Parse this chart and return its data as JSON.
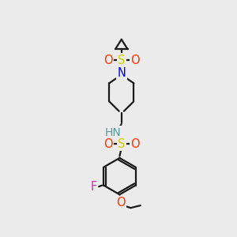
{
  "bg_color": "#ebebeb",
  "line_color": "#1a1a1a",
  "line_width": 1.6,
  "atom_colors": {
    "S": "#cccc00",
    "O": "#ff3300",
    "N_blue": "#0000ee",
    "N_teal": "#559999",
    "F": "#cc33aa",
    "C": "#1a1a1a"
  },
  "font_size": 10.5
}
